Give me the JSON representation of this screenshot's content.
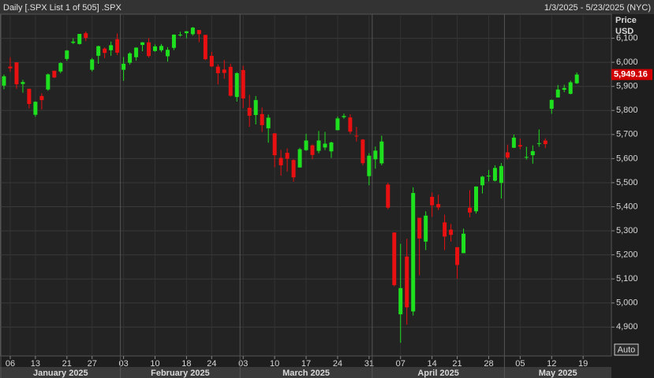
{
  "chart_data": {
    "type": "candlestick",
    "title": "Daily [.SPX List 1 of 505] .SPX",
    "date_range": "1/3/2025 - 5/23/2025 (NYC)",
    "y_label": [
      "Price",
      "USD"
    ],
    "auto_button": "Auto",
    "up_color": "#1ee01e",
    "down_color": "#e81010",
    "grid": true,
    "ylim": [
      4780,
      6200
    ],
    "yticks": [
      {
        "value": 4900,
        "label": "4,900"
      },
      {
        "value": 5000,
        "label": "5,000"
      },
      {
        "value": 5100,
        "label": "5,100"
      },
      {
        "value": 5200,
        "label": "5,200"
      },
      {
        "value": 5300,
        "label": "5,300"
      },
      {
        "value": 5400,
        "label": "5,400"
      },
      {
        "value": 5500,
        "label": "5,500"
      },
      {
        "value": 5600,
        "label": "5,600"
      },
      {
        "value": 5700,
        "label": "5,700"
      },
      {
        "value": 5800,
        "label": "5,800"
      },
      {
        "value": 5900,
        "label": "5,900"
      },
      {
        "value": 6000,
        "label": "6,000"
      },
      {
        "value": 6100,
        "label": "6,100"
      }
    ],
    "last_price": {
      "value": 5949.16,
      "label": "5,949.16"
    },
    "xticks": [
      {
        "value": "2025-01-06",
        "label": "06"
      },
      {
        "value": "2025-01-13",
        "label": "13"
      },
      {
        "value": "2025-01-21",
        "label": "21"
      },
      {
        "value": "2025-01-27",
        "label": "27"
      },
      {
        "value": "2025-02-03",
        "label": "03"
      },
      {
        "value": "2025-02-10",
        "label": "10"
      },
      {
        "value": "2025-02-18",
        "label": "18"
      },
      {
        "value": "2025-02-24",
        "label": "24"
      },
      {
        "value": "2025-03-03",
        "label": "03"
      },
      {
        "value": "2025-03-10",
        "label": "10"
      },
      {
        "value": "2025-03-17",
        "label": "17"
      },
      {
        "value": "2025-03-24",
        "label": "24"
      },
      {
        "value": "2025-03-31",
        "label": "31"
      },
      {
        "value": "2025-04-07",
        "label": "07"
      },
      {
        "value": "2025-04-14",
        "label": "14"
      },
      {
        "value": "2025-04-21",
        "label": "21"
      },
      {
        "value": "2025-04-28",
        "label": "28"
      },
      {
        "value": "2025-05-05",
        "label": "05"
      },
      {
        "value": "2025-05-12",
        "label": "12"
      },
      {
        "value": "2025-05-19",
        "label": "19"
      }
    ],
    "months": [
      {
        "value": "2025-01",
        "label": "January 2025"
      },
      {
        "value": "2025-02",
        "label": "February 2025"
      },
      {
        "value": "2025-03",
        "label": "March 2025"
      },
      {
        "value": "2025-04",
        "label": "April 2025"
      },
      {
        "value": "2025-05",
        "label": "May 2025"
      }
    ],
    "x": [
      "2025-01-03",
      "2025-01-06",
      "2025-01-07",
      "2025-01-08",
      "2025-01-10",
      "2025-01-13",
      "2025-01-14",
      "2025-01-15",
      "2025-01-16",
      "2025-01-17",
      "2025-01-21",
      "2025-01-22",
      "2025-01-23",
      "2025-01-24",
      "2025-01-27",
      "2025-01-28",
      "2025-01-29",
      "2025-01-30",
      "2025-01-31",
      "2025-02-03",
      "2025-02-04",
      "2025-02-05",
      "2025-02-06",
      "2025-02-07",
      "2025-02-10",
      "2025-02-11",
      "2025-02-12",
      "2025-02-13",
      "2025-02-14",
      "2025-02-18",
      "2025-02-19",
      "2025-02-20",
      "2025-02-21",
      "2025-02-24",
      "2025-02-25",
      "2025-02-26",
      "2025-02-27",
      "2025-02-28",
      "2025-03-03",
      "2025-03-04",
      "2025-03-05",
      "2025-03-06",
      "2025-03-07",
      "2025-03-10",
      "2025-03-11",
      "2025-03-12",
      "2025-03-13",
      "2025-03-14",
      "2025-03-17",
      "2025-03-18",
      "2025-03-19",
      "2025-03-20",
      "2025-03-21",
      "2025-03-24",
      "2025-03-25",
      "2025-03-26",
      "2025-03-27",
      "2025-03-28",
      "2025-03-31",
      "2025-04-01",
      "2025-04-02",
      "2025-04-03",
      "2025-04-04",
      "2025-04-07",
      "2025-04-08",
      "2025-04-09",
      "2025-04-10",
      "2025-04-11",
      "2025-04-14",
      "2025-04-15",
      "2025-04-16",
      "2025-04-17",
      "2025-04-21",
      "2025-04-22",
      "2025-04-23",
      "2025-04-24",
      "2025-04-25",
      "2025-04-28",
      "2025-04-29",
      "2025-04-30",
      "2025-05-01",
      "2025-05-02",
      "2025-05-05",
      "2025-05-06",
      "2025-05-07",
      "2025-05-08",
      "2025-05-09",
      "2025-05-12",
      "2025-05-13",
      "2025-05-14",
      "2025-05-15",
      "2025-05-16"
    ],
    "open": [
      5903,
      5982,
      6000,
      5910,
      5890,
      5782,
      5860,
      5887,
      5965,
      5962,
      6014,
      6081,
      6076,
      6121,
      5969,
      6027,
      6057,
      6050,
      6096,
      5969,
      5998,
      6021,
      6072,
      6083,
      6047,
      6050,
      6025,
      6060,
      6115,
      6121,
      6117,
      6134,
      6114,
      6027,
      5982,
      5970,
      5981,
      5856,
      5968,
      5811,
      5781,
      5785,
      5726,
      5705,
      5603,
      5624,
      5594,
      5563,
      5635,
      5655,
      5632,
      5646,
      5630,
      5718,
      5772,
      5771,
      5695,
      5679,
      5527,
      5597,
      5580,
      5492,
      5293,
      4953,
      5193,
      4965,
      5354,
      5255,
      5441,
      5411,
      5335,
      5305,
      5232,
      5207,
      5396,
      5381,
      5489,
      5529,
      5508,
      5499,
      5626,
      5645,
      5656,
      5605,
      5614,
      5663,
      5675,
      5807,
      5854,
      5886,
      5869,
      5913
    ],
    "high": [
      5949,
      6021,
      6000,
      5927,
      5890,
      5838,
      5871,
      5953,
      5965,
      6000,
      6051,
      6100,
      6118,
      6128,
      6018,
      6069,
      6062,
      6086,
      6120,
      6022,
      6042,
      6062,
      6084,
      6101,
      6074,
      6076,
      6063,
      6116,
      6127,
      6129,
      6147,
      6134,
      6114,
      6044,
      5992,
      6009,
      5994,
      5959,
      5986,
      5865,
      5860,
      5812,
      5783,
      5705,
      5636,
      5642,
      5597,
      5645,
      5703,
      5659,
      5715,
      5711,
      5670,
      5775,
      5787,
      5784,
      5732,
      5681,
      5623,
      5650,
      5695,
      5500,
      5293,
      5246,
      5267,
      5481,
      5354,
      5381,
      5459,
      5450,
      5367,
      5328,
      5232,
      5309,
      5469,
      5484,
      5528,
      5553,
      5572,
      5581,
      5658,
      5700,
      5683,
      5649,
      5655,
      5721,
      5684,
      5845,
      5906,
      5907,
      5924,
      5958
    ],
    "low": [
      5888,
      5960,
      5890,
      5874,
      5809,
      5774,
      5804,
      5882,
      5935,
      5955,
      6006,
      6076,
      6074,
      6088,
      5962,
      5994,
      6017,
      6027,
      6030,
      5923,
      5990,
      6007,
      6046,
      6020,
      6044,
      6042,
      6003,
      6051,
      6107,
      6100,
      6111,
      6084,
      6009,
      5980,
      5908,
      5932,
      5858,
      5837,
      5810,
      5732,
      5742,
      5711,
      5666,
      5564,
      5529,
      5546,
      5504,
      5563,
      5632,
      5597,
      5622,
      5635,
      5603,
      5718,
      5765,
      5703,
      5671,
      5572,
      5489,
      5558,
      5572,
      5390,
      5069,
      4835,
      4910,
      4948,
      5115,
      5220,
      5358,
      5386,
      5220,
      5255,
      5101,
      5207,
      5356,
      5372,
      5455,
      5505,
      5505,
      5434,
      5597,
      5644,
      5639,
      5596,
      5579,
      5649,
      5643,
      5786,
      5854,
      5876,
      5867,
      5910
    ],
    "close": [
      5942,
      5975,
      5909,
      5918,
      5827,
      5836,
      5843,
      5950,
      5937,
      5997,
      6049,
      6086,
      6118,
      6101,
      6012,
      6067,
      6039,
      6071,
      6040,
      5994,
      6037,
      6061,
      6083,
      6026,
      6066,
      6068,
      6052,
      6115,
      6115,
      6129,
      6144,
      6117,
      6013,
      5983,
      5955,
      5956,
      5861,
      5955,
      5850,
      5778,
      5843,
      5739,
      5770,
      5614,
      5572,
      5599,
      5522,
      5639,
      5675,
      5615,
      5675,
      5662,
      5667,
      5767,
      5777,
      5712,
      5693,
      5581,
      5612,
      5633,
      5671,
      5396,
      5074,
      5062,
      4982,
      5457,
      5268,
      5363,
      5406,
      5397,
      5276,
      5283,
      5158,
      5288,
      5376,
      5484,
      5525,
      5529,
      5561,
      5569,
      5604,
      5687,
      5650,
      5607,
      5631,
      5664,
      5660,
      5844,
      5887,
      5893,
      5917,
      5949.16
    ]
  }
}
